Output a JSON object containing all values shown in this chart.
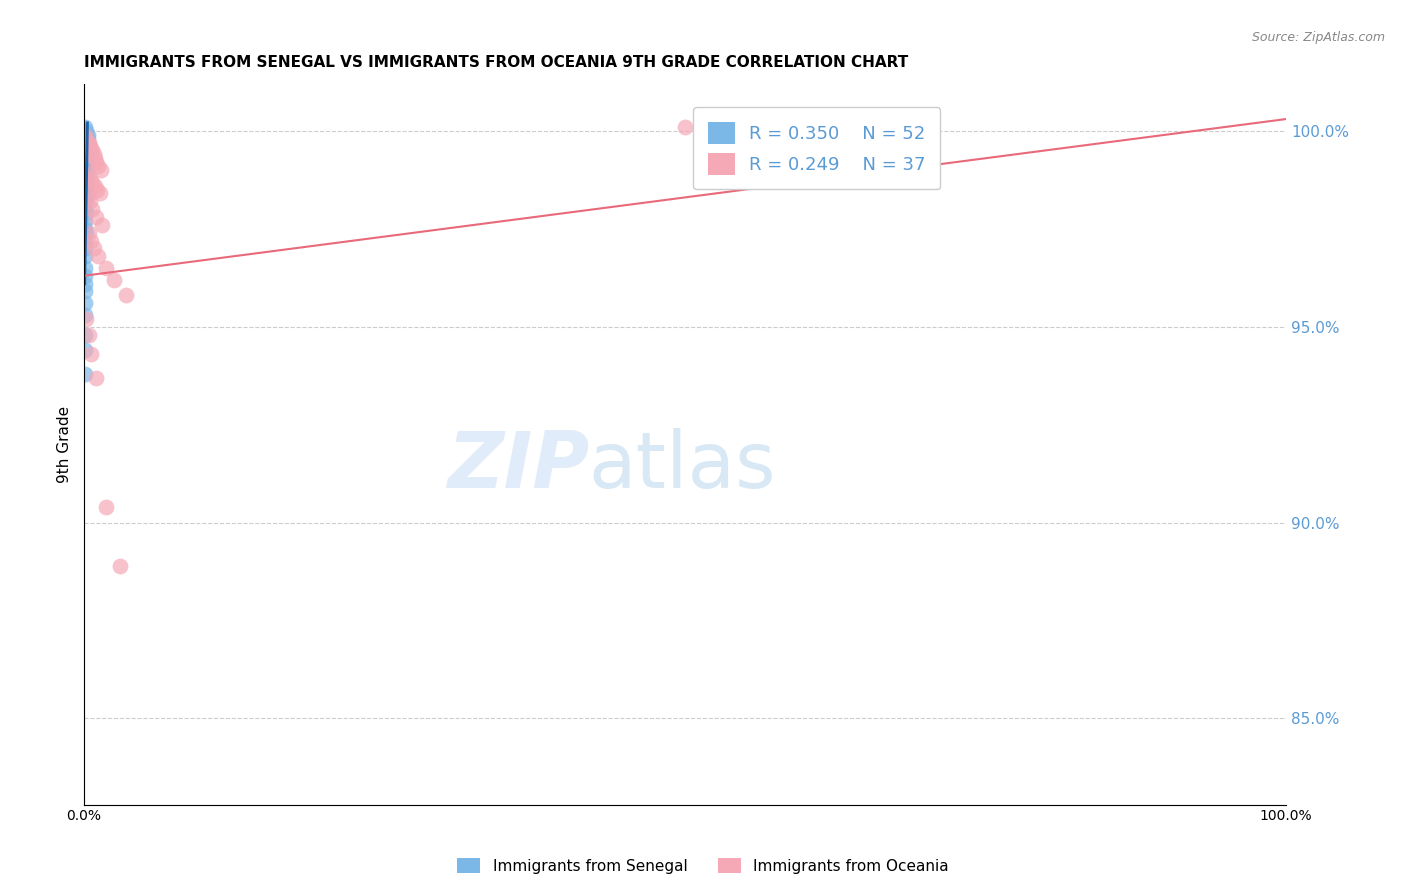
{
  "title": "IMMIGRANTS FROM SENEGAL VS IMMIGRANTS FROM OCEANIA 9TH GRADE CORRELATION CHART",
  "source": "Source: ZipAtlas.com",
  "ylabel": "9th Grade",
  "ytick_labels": [
    "85.0%",
    "90.0%",
    "95.0%",
    "100.0%"
  ],
  "ytick_values": [
    0.85,
    0.9,
    0.95,
    1.0
  ],
  "xlim": [
    0.0,
    1.0
  ],
  "ylim": [
    0.828,
    1.012
  ],
  "legend_r1": "R = 0.350",
  "legend_n1": "N = 52",
  "legend_r2": "R = 0.249",
  "legend_n2": "N = 37",
  "color_blue": "#7bb8e8",
  "color_pink": "#f5a8b5",
  "color_blue_line": "#2166ac",
  "color_pink_line": "#e8697a",
  "color_right_axis": "#5b9bd5",
  "blue_scatter_x": [
    0.001,
    0.002,
    0.003,
    0.001,
    0.002,
    0.003,
    0.001,
    0.002,
    0.001,
    0.002,
    0.001,
    0.002,
    0.001,
    0.002,
    0.001,
    0.002,
    0.001,
    0.002,
    0.001,
    0.002,
    0.001,
    0.002,
    0.001,
    0.002,
    0.001,
    0.002,
    0.001,
    0.001,
    0.002,
    0.002,
    0.001,
    0.002,
    0.001,
    0.002,
    0.001,
    0.001,
    0.002,
    0.001,
    0.001,
    0.002,
    0.001,
    0.001,
    0.001,
    0.001,
    0.001,
    0.001,
    0.001,
    0.001,
    0.001,
    0.001,
    0.001,
    0.001
  ],
  "blue_scatter_y": [
    1.001,
    1.0,
    0.999,
    0.999,
    0.998,
    0.998,
    0.997,
    0.997,
    0.996,
    0.996,
    0.995,
    0.995,
    0.994,
    0.994,
    0.993,
    0.993,
    0.992,
    0.992,
    0.991,
    0.991,
    0.99,
    0.99,
    0.989,
    0.989,
    0.988,
    0.988,
    0.987,
    0.986,
    0.986,
    0.985,
    0.984,
    0.984,
    0.983,
    0.983,
    0.982,
    0.98,
    0.979,
    0.977,
    0.975,
    0.974,
    0.972,
    0.97,
    0.968,
    0.965,
    0.963,
    0.961,
    0.959,
    0.956,
    0.953,
    0.948,
    0.944,
    0.938
  ],
  "pink_scatter_x": [
    0.001,
    0.002,
    0.003,
    0.004,
    0.005,
    0.006,
    0.007,
    0.008,
    0.009,
    0.01,
    0.012,
    0.014,
    0.003,
    0.005,
    0.007,
    0.009,
    0.011,
    0.013,
    0.003,
    0.005,
    0.007,
    0.01,
    0.015,
    0.004,
    0.006,
    0.008,
    0.012,
    0.018,
    0.025,
    0.035,
    0.002,
    0.004,
    0.006,
    0.01,
    0.018,
    0.03,
    0.5
  ],
  "pink_scatter_y": [
    0.999,
    0.998,
    0.997,
    0.997,
    0.996,
    0.995,
    0.995,
    0.994,
    0.993,
    0.992,
    0.991,
    0.99,
    0.989,
    0.988,
    0.987,
    0.986,
    0.985,
    0.984,
    0.983,
    0.982,
    0.98,
    0.978,
    0.976,
    0.974,
    0.972,
    0.97,
    0.968,
    0.965,
    0.962,
    0.958,
    0.952,
    0.948,
    0.943,
    0.937,
    0.904,
    0.889,
    1.001
  ],
  "blue_line_x": [
    0.0005,
    0.0028
  ],
  "blue_line_y": [
    0.961,
    1.002
  ],
  "pink_line_x": [
    0.0,
    1.0
  ],
  "pink_line_y": [
    0.963,
    1.003
  ]
}
